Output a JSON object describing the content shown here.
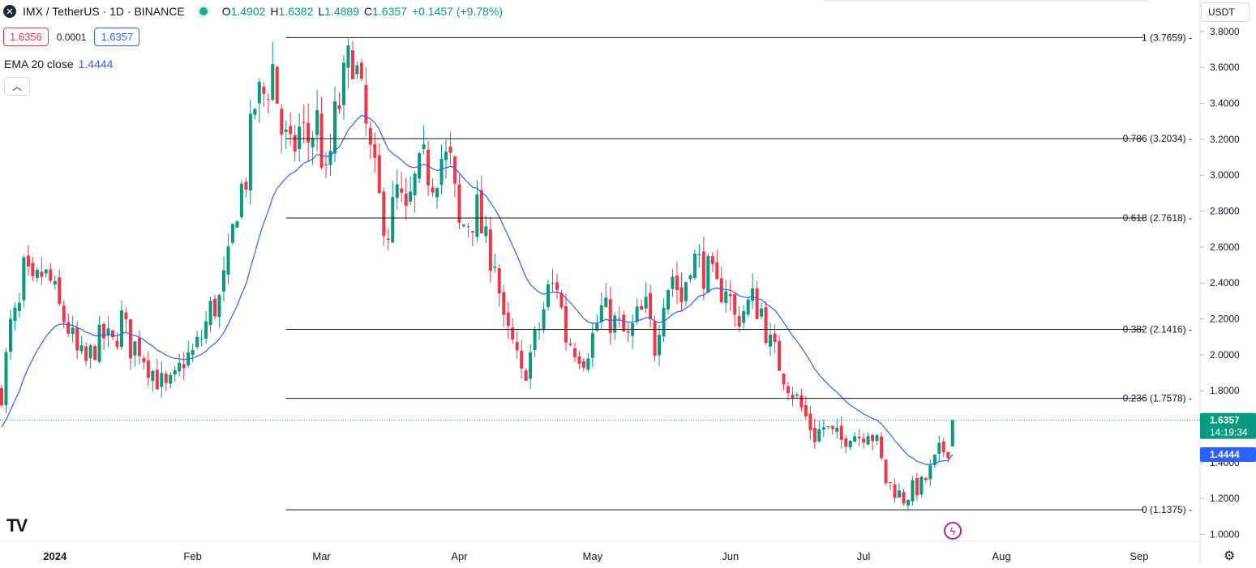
{
  "legend": {
    "logo_icon": "imx-logo-icon",
    "symbol": "IMX / TetherUS · 1D · BINANCE",
    "o_label": "O",
    "o": "1.4902",
    "h_label": "H",
    "h": "1.6382",
    "l_label": "L",
    "l": "1.4889",
    "c_label": "C",
    "c": "1.6357",
    "change": "+0.1457 (+9.78%)",
    "sell_price": "1.6356",
    "spread": "0.0001",
    "buy_price": "1.6357",
    "ema_label": "EMA 20 close",
    "ema_value": "1.4444",
    "collapse_icon": "chevron-up-icon"
  },
  "currency": "USDT",
  "colors": {
    "up": "#089981",
    "down": "#f23645",
    "ema": "#2962ff",
    "fib": "#131722",
    "price_line": "#089981"
  },
  "chart_data": {
    "type": "candlestick",
    "title": "IMX / TetherUS · 1D · BINANCE",
    "xlabel": "",
    "ylabel": "",
    "ylim": [
      0.98,
      3.84
    ],
    "y_ticks": [
      1.0,
      1.2,
      1.4,
      1.6,
      1.8,
      2.0,
      2.2,
      2.4,
      2.6,
      2.8,
      3.0,
      3.2,
      3.4,
      3.6,
      3.8
    ],
    "y_tick_labels": [
      "1.0000",
      "1.2000",
      "1.4000",
      "1.6000",
      "1.8000",
      "2.0000",
      "2.2000",
      "2.4000",
      "2.6000",
      "2.8000",
      "3.0000",
      "3.2000",
      "3.4000",
      "3.6000",
      "3.8000"
    ],
    "x_labels": [
      {
        "label": "2024",
        "day": 10
      },
      {
        "label": "Feb",
        "day": 41
      },
      {
        "label": "Mar",
        "day": 70
      },
      {
        "label": "Apr",
        "day": 101
      },
      {
        "label": "May",
        "day": 131
      },
      {
        "label": "Jun",
        "day": 162
      },
      {
        "label": "Jul",
        "day": 192
      },
      {
        "label": "Aug",
        "day": 223
      },
      {
        "label": "Sep",
        "day": 254
      }
    ],
    "first_day_index": -2,
    "days_visible": 260,
    "anchors": [
      [
        -2,
        1.8
      ],
      [
        0,
        2.15
      ],
      [
        2,
        2.25
      ],
      [
        3,
        2.45
      ],
      [
        5,
        2.35
      ],
      [
        7,
        2.45
      ],
      [
        9,
        2.4
      ],
      [
        11,
        2.25
      ],
      [
        13,
        2.15
      ],
      [
        15,
        2.0
      ],
      [
        17,
        1.95
      ],
      [
        19,
        2.05
      ],
      [
        21,
        2.1
      ],
      [
        23,
        2.05
      ],
      [
        25,
        2.2
      ],
      [
        27,
        2.05
      ],
      [
        29,
        2.05
      ],
      [
        31,
        1.95
      ],
      [
        33,
        1.87
      ],
      [
        35,
        1.8
      ],
      [
        37,
        1.85
      ],
      [
        39,
        1.98
      ],
      [
        41,
        2.0
      ],
      [
        43,
        2.1
      ],
      [
        45,
        2.25
      ],
      [
        47,
        2.3
      ],
      [
        49,
        2.5
      ],
      [
        51,
        2.85
      ],
      [
        53,
        3.0
      ],
      [
        55,
        3.4
      ],
      [
        57,
        3.45
      ],
      [
        59,
        3.6
      ],
      [
        61,
        3.25
      ],
      [
        63,
        3.1
      ],
      [
        65,
        3.25
      ],
      [
        67,
        3.2
      ],
      [
        69,
        3.3
      ],
      [
        71,
        2.95
      ],
      [
        73,
        3.3
      ],
      [
        75,
        3.5
      ],
      [
        77,
        3.7
      ],
      [
        79,
        3.4
      ],
      [
        81,
        3.1
      ],
      [
        83,
        2.85
      ],
      [
        85,
        2.7
      ],
      [
        87,
        2.9
      ],
      [
        89,
        2.75
      ],
      [
        91,
        2.95
      ],
      [
        93,
        3.05
      ],
      [
        95,
        3.0
      ],
      [
        97,
        3.1
      ],
      [
        99,
        3.05
      ],
      [
        101,
        2.7
      ],
      [
        103,
        2.75
      ],
      [
        105,
        2.8
      ],
      [
        107,
        2.6
      ],
      [
        109,
        2.55
      ],
      [
        111,
        2.15
      ],
      [
        113,
        2.05
      ],
      [
        115,
        1.87
      ],
      [
        117,
        2.0
      ],
      [
        119,
        2.15
      ],
      [
        121,
        2.35
      ],
      [
        123,
        2.4
      ],
      [
        125,
        2.1
      ],
      [
        127,
        2.05
      ],
      [
        129,
        2.0
      ],
      [
        131,
        2.1
      ],
      [
        133,
        2.25
      ],
      [
        135,
        2.2
      ],
      [
        137,
        2.15
      ],
      [
        139,
        2.08
      ],
      [
        141,
        2.2
      ],
      [
        143,
        2.25
      ],
      [
        145,
        2.05
      ],
      [
        147,
        2.35
      ],
      [
        149,
        2.45
      ],
      [
        151,
        2.3
      ],
      [
        153,
        2.55
      ],
      [
        155,
        2.5
      ],
      [
        157,
        2.45
      ],
      [
        159,
        2.35
      ],
      [
        161,
        2.4
      ],
      [
        163,
        2.2
      ],
      [
        165,
        2.25
      ],
      [
        167,
        2.3
      ],
      [
        169,
        2.25
      ],
      [
        171,
        2.05
      ],
      [
        173,
        1.95
      ],
      [
        175,
        1.85
      ],
      [
        177,
        1.75
      ],
      [
        179,
        1.65
      ],
      [
        181,
        1.55
      ],
      [
        183,
        1.6
      ],
      [
        185,
        1.55
      ],
      [
        187,
        1.52
      ],
      [
        189,
        1.58
      ],
      [
        191,
        1.55
      ],
      [
        193,
        1.6
      ],
      [
        195,
        1.5
      ],
      [
        197,
        1.3
      ],
      [
        199,
        1.25
      ],
      [
        201,
        1.2
      ],
      [
        203,
        1.25
      ],
      [
        205,
        1.27
      ],
      [
        207,
        1.35
      ],
      [
        209,
        1.45
      ],
      [
        211,
        1.49
      ],
      [
        212,
        1.6357
      ]
    ],
    "fib_levels": [
      {
        "ratio": "1",
        "value": 3.7659,
        "label": "1 (3.7659)"
      },
      {
        "ratio": "0.786",
        "value": 3.2034,
        "label": "0.786 (3.2034)"
      },
      {
        "ratio": "0.618",
        "value": 2.7618,
        "label": "0.618 (2.7618)"
      },
      {
        "ratio": "0.382",
        "value": 2.1416,
        "label": "0.382 (2.1416)"
      },
      {
        "ratio": "0.236",
        "value": 1.7578,
        "label": "0.236 (1.7578)"
      },
      {
        "ratio": "0",
        "value": 1.1375,
        "label": "0 (1.1375)"
      }
    ],
    "fib_start_day": 62,
    "fib_end_day": 255,
    "ema_period": 20,
    "last_price": 1.6357,
    "last_price_label": "1.6357",
    "countdown": "14:19:34",
    "ema_last": 1.4444,
    "ema_last_label": "1.4444"
  },
  "footer": {
    "tv_logo": "TV",
    "flash_icon": "flash-icon",
    "settings_icon": "gear-icon"
  }
}
